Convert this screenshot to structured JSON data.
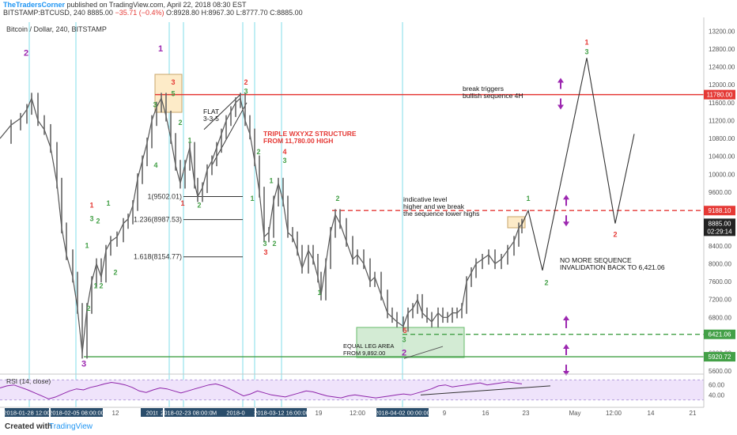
{
  "header": {
    "brand": "TheTradersCorner",
    "published": "published on TradingView.com, April 22, 2018 08:30 EST",
    "symbol_line": "BITSTAMP:BTCUSD, 240",
    "last": "8885.00",
    "change": "−35.71 (−0.4%)",
    "ohlc": "O:8928.80 H:8967.30 L:8777.70 C:8885.00"
  },
  "footer": {
    "created": "Created with",
    "brand": "TradingView"
  },
  "chart_data": {
    "type": "line",
    "title": "Bitcoin / Dollar, 240, BITSTAMP",
    "y_ticks": [
      5600,
      6000,
      6400,
      6800,
      7200,
      7600,
      8000,
      8400,
      8800,
      9200,
      9600,
      10000,
      10400,
      10800,
      11200,
      11600,
      12000,
      12400,
      12800,
      13200
    ],
    "ylim": [
      5550,
      13400
    ],
    "x_ticks": [
      "12",
      "19",
      "12:00",
      "9",
      "16",
      "23",
      "May",
      "12:00",
      "14",
      "21"
    ],
    "x_highlighted": [
      "2018-01-28 12:00",
      "2018-02-05 08:00:00",
      "201t",
      "2018-02-23 08:00:00",
      "M",
      "2018-0",
      "2018-03-12 16:00:00",
      "2018-04-02 00:00:00"
    ],
    "price_path": [
      {
        "x": 0,
        "y": 10800
      },
      {
        "x": 14,
        "y": 11100
      },
      {
        "x": 26,
        "y": 11250
      },
      {
        "x": 34,
        "y": 11450
      },
      {
        "x": 40,
        "y": 11700
      },
      {
        "x": 48,
        "y": 11200
      },
      {
        "x": 56,
        "y": 11000
      },
      {
        "x": 64,
        "y": 10600
      },
      {
        "x": 72,
        "y": 9800
      },
      {
        "x": 78,
        "y": 8800
      },
      {
        "x": 84,
        "y": 8200
      },
      {
        "x": 92,
        "y": 7700
      },
      {
        "x": 98,
        "y": 7000
      },
      {
        "x": 104,
        "y": 6000
      },
      {
        "x": 110,
        "y": 7000
      },
      {
        "x": 116,
        "y": 7600
      },
      {
        "x": 122,
        "y": 8000
      },
      {
        "x": 128,
        "y": 7700
      },
      {
        "x": 134,
        "y": 8300
      },
      {
        "x": 140,
        "y": 8500
      },
      {
        "x": 148,
        "y": 8600
      },
      {
        "x": 156,
        "y": 8900
      },
      {
        "x": 162,
        "y": 9000
      },
      {
        "x": 168,
        "y": 9300
      },
      {
        "x": 174,
        "y": 9900
      },
      {
        "x": 180,
        "y": 10300
      },
      {
        "x": 186,
        "y": 10700
      },
      {
        "x": 192,
        "y": 11200
      },
      {
        "x": 198,
        "y": 11500
      },
      {
        "x": 204,
        "y": 11700
      },
      {
        "x": 210,
        "y": 11300
      },
      {
        "x": 216,
        "y": 10800
      },
      {
        "x": 222,
        "y": 10200
      },
      {
        "x": 228,
        "y": 9800
      },
      {
        "x": 234,
        "y": 10200
      },
      {
        "x": 240,
        "y": 10600
      },
      {
        "x": 246,
        "y": 9800
      },
      {
        "x": 250,
        "y": 9500
      },
      {
        "x": 256,
        "y": 9700
      },
      {
        "x": 262,
        "y": 10100
      },
      {
        "x": 268,
        "y": 10300
      },
      {
        "x": 274,
        "y": 10600
      },
      {
        "x": 280,
        "y": 10900
      },
      {
        "x": 286,
        "y": 11200
      },
      {
        "x": 292,
        "y": 11400
      },
      {
        "x": 298,
        "y": 11600
      },
      {
        "x": 304,
        "y": 11700
      },
      {
        "x": 310,
        "y": 11200
      },
      {
        "x": 316,
        "y": 10900
      },
      {
        "x": 322,
        "y": 10300
      },
      {
        "x": 328,
        "y": 9600
      },
      {
        "x": 334,
        "y": 8600
      },
      {
        "x": 340,
        "y": 8700
      },
      {
        "x": 346,
        "y": 9400
      },
      {
        "x": 352,
        "y": 9800
      },
      {
        "x": 358,
        "y": 9400
      },
      {
        "x": 364,
        "y": 8700
      },
      {
        "x": 370,
        "y": 8600
      },
      {
        "x": 376,
        "y": 8300
      },
      {
        "x": 382,
        "y": 7900
      },
      {
        "x": 390,
        "y": 8300
      },
      {
        "x": 396,
        "y": 8100
      },
      {
        "x": 402,
        "y": 7700
      },
      {
        "x": 406,
        "y": 7300
      },
      {
        "x": 412,
        "y": 8000
      },
      {
        "x": 418,
        "y": 8700
      },
      {
        "x": 424,
        "y": 9100
      },
      {
        "x": 430,
        "y": 8900
      },
      {
        "x": 438,
        "y": 8500
      },
      {
        "x": 446,
        "y": 8100
      },
      {
        "x": 452,
        "y": 8200
      },
      {
        "x": 460,
        "y": 8000
      },
      {
        "x": 468,
        "y": 7600
      },
      {
        "x": 474,
        "y": 7700
      },
      {
        "x": 482,
        "y": 7300
      },
      {
        "x": 490,
        "y": 6900
      },
      {
        "x": 496,
        "y": 6800
      },
      {
        "x": 502,
        "y": 6700
      },
      {
        "x": 510,
        "y": 6600
      },
      {
        "x": 516,
        "y": 6900
      },
      {
        "x": 522,
        "y": 7000
      },
      {
        "x": 528,
        "y": 7200
      },
      {
        "x": 534,
        "y": 6900
      },
      {
        "x": 540,
        "y": 6800
      },
      {
        "x": 546,
        "y": 6700
      },
      {
        "x": 554,
        "y": 6900
      },
      {
        "x": 560,
        "y": 6800
      },
      {
        "x": 566,
        "y": 6800
      },
      {
        "x": 572,
        "y": 6900
      },
      {
        "x": 578,
        "y": 6900
      },
      {
        "x": 584,
        "y": 7000
      },
      {
        "x": 590,
        "y": 7600
      },
      {
        "x": 596,
        "y": 7800
      },
      {
        "x": 602,
        "y": 8000
      },
      {
        "x": 610,
        "y": 8100
      },
      {
        "x": 618,
        "y": 8200
      },
      {
        "x": 626,
        "y": 8000
      },
      {
        "x": 634,
        "y": 8100
      },
      {
        "x": 642,
        "y": 8300
      },
      {
        "x": 650,
        "y": 8500
      },
      {
        "x": 656,
        "y": 8800
      },
      {
        "x": 660,
        "y": 8885
      }
    ],
    "projection_path": [
      {
        "x": 660,
        "y": 8885
      },
      {
        "x": 668,
        "y": 9188
      },
      {
        "x": 686,
        "y": 7850
      },
      {
        "x": 742,
        "y": 12600
      },
      {
        "x": 778,
        "y": 8900
      },
      {
        "x": 802,
        "y": 10900
      }
    ],
    "price_lines": [
      {
        "value": 11780,
        "label": "11780.00",
        "style": "solid",
        "color": "#e53935"
      },
      {
        "value": 9188,
        "label": "9188.10",
        "style": "dashed",
        "color": "#e53935"
      },
      {
        "value": 6421,
        "label": "6421.06",
        "style": "dashed",
        "color": "#43a047"
      },
      {
        "value": 5920,
        "label": "5920.72",
        "style": "solid",
        "color": "#43a047"
      }
    ],
    "current_price": {
      "value": 8885,
      "label": "8885.00",
      "countdown": "02:29:14"
    },
    "fib_levels": [
      {
        "label": "1(9502.01)",
        "value": 9502
      },
      {
        "label": "1.236(8987.53)",
        "value": 8987
      },
      {
        "label": "1.618(8154.77)",
        "value": 8154
      }
    ],
    "annotations": {
      "break": [
        "break triggers",
        "bullish sequence 4H"
      ],
      "flat": [
        "FLAT",
        "3-3-5"
      ],
      "triple": [
        "TRIPLE WXYXZ STRUCTURE",
        "FROM 11,780.00 HIGH"
      ],
      "indicative": [
        "indicative level",
        "higher and we break",
        "the sequence lower highs"
      ],
      "nomore": [
        "NO MORE SEQUENCE",
        "INVALIDATION BACK TO 6,421.06"
      ],
      "equal": [
        "EQUAL LEG AREA",
        "FROM 9,892.00"
      ]
    },
    "wave_labels": [
      {
        "text": "2",
        "color": "#9c27b0",
        "x": 33,
        "y": 12650
      },
      {
        "text": "1",
        "color": "#9c27b0",
        "x": 203,
        "y": 12750
      },
      {
        "text": "3",
        "color": "#9c27b0",
        "x": 106,
        "y": 5700
      },
      {
        "text": "2",
        "color": "#9c27b0",
        "x": 511,
        "y": 5950
      },
      {
        "text": "3",
        "color": "#e53935",
        "x": 219,
        "y": 12000
      },
      {
        "text": "5",
        "color": "#43a047",
        "x": 219,
        "y": 11750
      },
      {
        "text": "2",
        "color": "#e53935",
        "x": 311,
        "y": 12000
      },
      {
        "text": "3",
        "color": "#43a047",
        "x": 311,
        "y": 11800
      },
      {
        "text": "4",
        "color": "#e53935",
        "x": 360,
        "y": 10450
      },
      {
        "text": "3",
        "color": "#43a047",
        "x": 360,
        "y": 10250
      },
      {
        "text": "1",
        "color": "#e53935",
        "x": 116,
        "y": 9250
      },
      {
        "text": "3",
        "color": "#43a047",
        "x": 116,
        "y": 8950
      },
      {
        "text": "2",
        "color": "#43a047",
        "x": 124,
        "y": 8900
      },
      {
        "text": "1",
        "color": "#43a047",
        "x": 121,
        "y": 7450
      },
      {
        "text": "2",
        "color": "#43a047",
        "x": 128,
        "y": 7450
      },
      {
        "text": "2",
        "color": "#43a047",
        "x": 112,
        "y": 6950
      },
      {
        "text": "1",
        "color": "#43a047",
        "x": 110,
        "y": 8350
      },
      {
        "text": "2",
        "color": "#43a047",
        "x": 146,
        "y": 7750
      },
      {
        "text": "1",
        "color": "#43a047",
        "x": 137,
        "y": 9300
      },
      {
        "text": "3",
        "color": "#43a047",
        "x": 196,
        "y": 11500
      },
      {
        "text": "4",
        "color": "#43a047",
        "x": 197,
        "y": 10150
      },
      {
        "text": "2",
        "color": "#43a047",
        "x": 228,
        "y": 11100
      },
      {
        "text": "1",
        "color": "#43a047",
        "x": 240,
        "y": 10700
      },
      {
        "text": "1",
        "color": "#e53935",
        "x": 231,
        "y": 9300
      },
      {
        "text": "2",
        "color": "#43a047",
        "x": 252,
        "y": 9250
      },
      {
        "text": "2",
        "color": "#43a047",
        "x": 327,
        "y": 10450
      },
      {
        "text": "1",
        "color": "#43a047",
        "x": 343,
        "y": 9800
      },
      {
        "text": "1",
        "color": "#43a047",
        "x": 319,
        "y": 9400
      },
      {
        "text": "3",
        "color": "#43a047",
        "x": 335,
        "y": 8400
      },
      {
        "text": "3",
        "color": "#e53935",
        "x": 336,
        "y": 8200
      },
      {
        "text": "2",
        "color": "#43a047",
        "x": 347,
        "y": 8400
      },
      {
        "text": "2",
        "color": "#43a047",
        "x": 427,
        "y": 9400
      },
      {
        "text": "1",
        "color": "#43a047",
        "x": 404,
        "y": 7300
      },
      {
        "text": "5",
        "color": "#e53935",
        "x": 512,
        "y": 6450
      },
      {
        "text": "3",
        "color": "#43a047",
        "x": 511,
        "y": 6250
      },
      {
        "text": "1",
        "color": "#43a047",
        "x": 668,
        "y": 9400
      },
      {
        "text": "2",
        "color": "#43a047",
        "x": 691,
        "y": 7520
      },
      {
        "text": "1",
        "color": "#e53935",
        "x": 742,
        "y": 12900
      },
      {
        "text": "3",
        "color": "#43a047",
        "x": 742,
        "y": 12680
      },
      {
        "text": "2",
        "color": "#e53935",
        "x": 778,
        "y": 8600
      }
    ],
    "arrows": [
      {
        "x": 709,
        "y": 11800,
        "dir": "updown"
      },
      {
        "x": 716,
        "y": 9188,
        "dir": "updown"
      },
      {
        "x": 716,
        "y": 6700,
        "dir": "up"
      },
      {
        "x": 716,
        "y": 5850,
        "dir": "updown"
      }
    ],
    "rsi": {
      "label": "RSI (14, close)",
      "ticks": [
        60,
        40
      ],
      "ylim": [
        20,
        80
      ],
      "band": [
        30,
        70
      ],
      "values": [
        54,
        58,
        60,
        55,
        50,
        44,
        38,
        32,
        36,
        42,
        48,
        52,
        50,
        55,
        58,
        62,
        65,
        63,
        60,
        55,
        48,
        45,
        50,
        54,
        52,
        48,
        44,
        48,
        52,
        56,
        60,
        62,
        58,
        52,
        45,
        38,
        42,
        48,
        44,
        40,
        38,
        36,
        40,
        44,
        48,
        46,
        42,
        38,
        36,
        34,
        38,
        40,
        38,
        36,
        34,
        36,
        38,
        40,
        42,
        40,
        44,
        48,
        52,
        58,
        60,
        56,
        58,
        60,
        62,
        64,
        60,
        62,
        64,
        66,
        64,
        62
      ]
    }
  }
}
